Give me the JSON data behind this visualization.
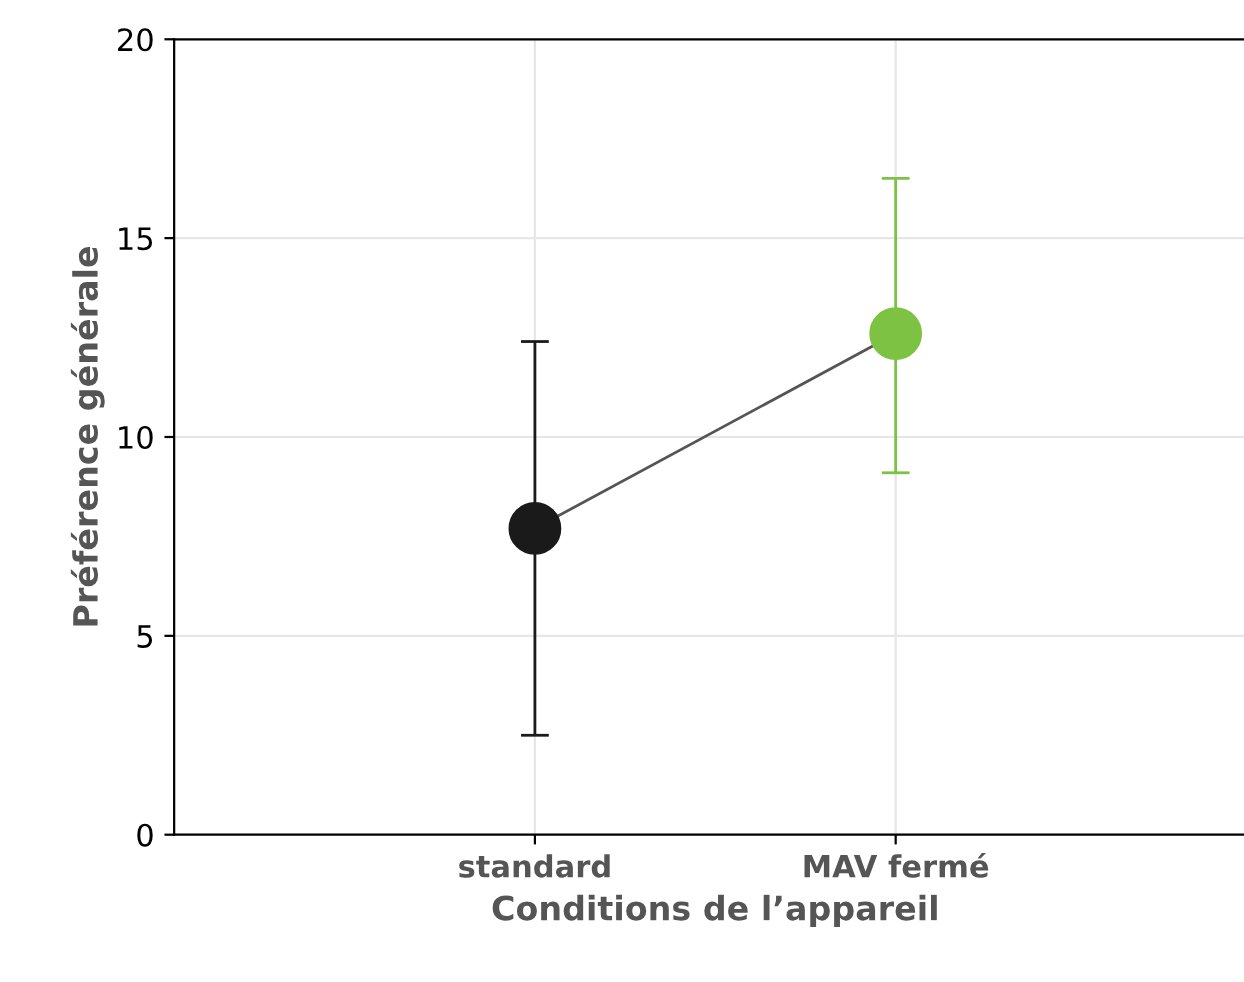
{
  "chart_data": {
    "type": "line",
    "xlabel": "Conditions de l’appareil",
    "ylabel": "Préférence générale",
    "categories": [
      "standard",
      "MAV fermé"
    ],
    "series": [
      {
        "color": "#555555",
        "colors": [
          "#1a1a1a",
          "#7dc242"
        ],
        "values": [
          7.7,
          12.6
        ],
        "errors": [
          [
            2.5,
            12.4
          ],
          [
            9.1,
            16.5
          ]
        ]
      }
    ],
    "ylim": [
      0,
      20
    ],
    "yticks": [
      0,
      5,
      10,
      15,
      20
    ],
    "grid": true,
    "marker": "circle",
    "line_style": "solid"
  }
}
